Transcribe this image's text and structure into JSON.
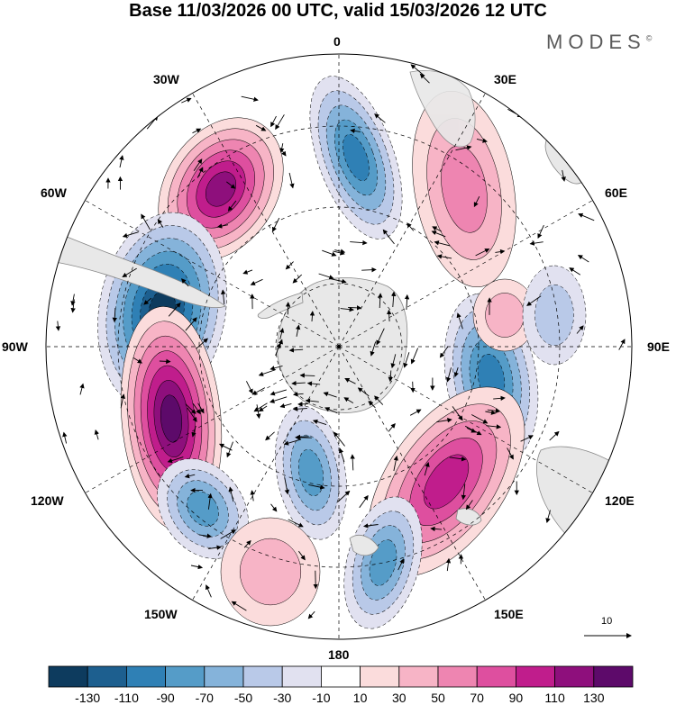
{
  "header": {
    "title": "Base 11/03/2026 00 UTC, valid 15/03/2026 12 UTC",
    "brand": "MODES",
    "brand_mark": "©"
  },
  "map": {
    "projection": "south-polar-stereographic",
    "longitude_labels": {
      "lon_0": "0",
      "lon_30e": "30E",
      "lon_60e": "60E",
      "lon_90e": "90E",
      "lon_120e": "120E",
      "lon_150e": "150E",
      "lon_180": "180",
      "lon_150w": "150W",
      "lon_120w": "120W",
      "lon_90w": "90W",
      "lon_60w": "60W",
      "lon_30w": "30W"
    },
    "reference_vector_label": "10",
    "colors": {
      "land": "#e8e8e8",
      "coast": "#888888",
      "grid": "#000000"
    }
  },
  "colorbar": {
    "labels": [
      "-130",
      "-110",
      "-90",
      "-70",
      "-50",
      "-30",
      "-10",
      "10",
      "30",
      "50",
      "70",
      "90",
      "110",
      "130"
    ],
    "colors": [
      "#0d3b5e",
      "#1d5f8f",
      "#2f80b5",
      "#559cc8",
      "#85b3da",
      "#b9c9e8",
      "#e1e1f0",
      "#ffffff",
      "#fbdcdc",
      "#f7b4c6",
      "#ee85b1",
      "#de4f9f",
      "#c01d8c",
      "#8e0f7c",
      "#5d0a6a"
    ]
  }
}
